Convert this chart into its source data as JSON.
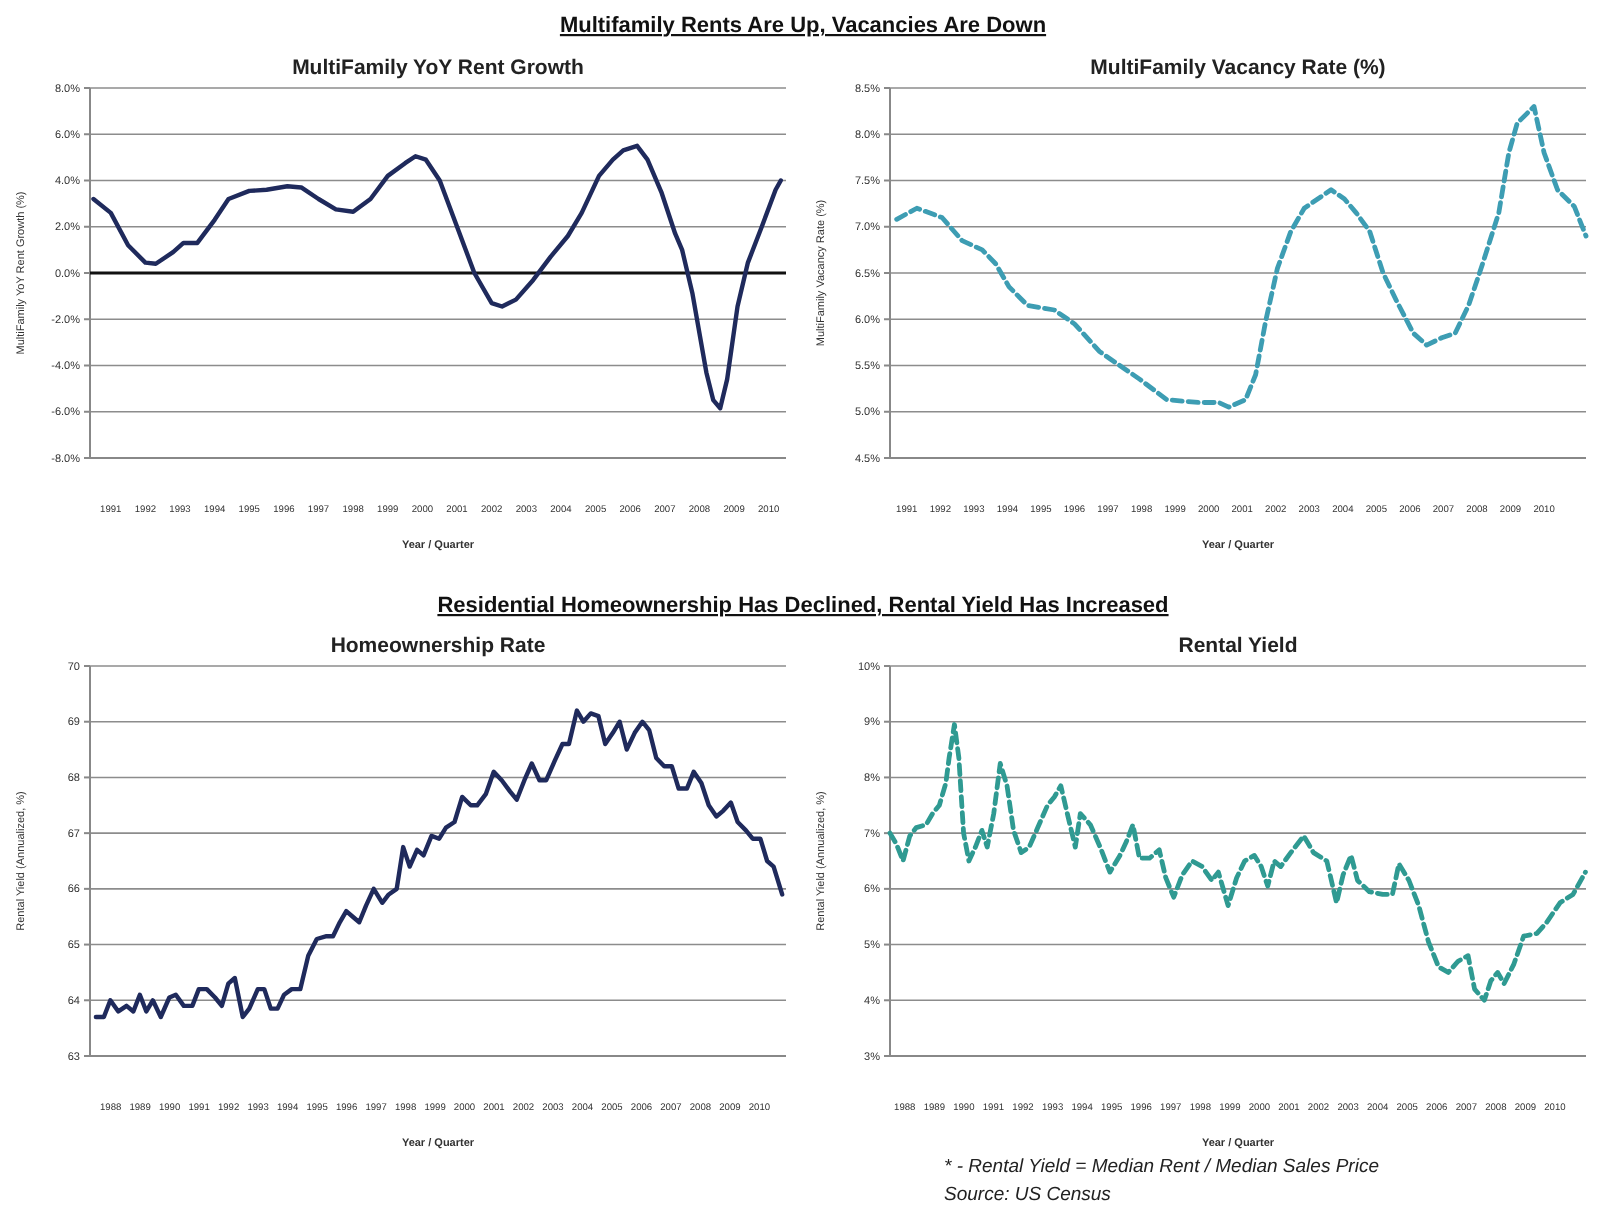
{
  "chart_data": [
    {
      "type": "line",
      "title": "MultiFamily YoY Rent Growth",
      "xlabel": "Year / Quarter",
      "ylabel": "MultiFamily YoY Rent Growth (%)",
      "annotations": [
        "Multifamily Rents Are Up, Vacancies Are Down"
      ],
      "grid": "y",
      "color": "#1f2a5c",
      "line_style": "solid",
      "x": [
        1991.0,
        1991.5,
        1992.0,
        1992.5,
        1992.8,
        1993.3,
        1993.6,
        1994.0,
        1994.5,
        1994.9,
        1995.5,
        1996.0,
        1996.6,
        1997.0,
        1997.5,
        1998.0,
        1998.5,
        1999.0,
        1999.5,
        2000.0,
        2000.3,
        2000.6,
        2001.0,
        2001.5,
        2002.0,
        2002.5,
        2002.8,
        2003.2,
        2003.7,
        2004.2,
        2004.7,
        2005.1,
        2005.6,
        2006.0,
        2006.3,
        2006.7,
        2007.0,
        2007.4,
        2007.8,
        2008.0,
        2008.3,
        2008.7,
        2008.9,
        2009.1,
        2009.3,
        2009.6,
        2009.9,
        2010.3,
        2010.7,
        2010.85
      ],
      "values": [
        3.2,
        2.6,
        1.2,
        0.45,
        0.4,
        0.9,
        1.3,
        1.3,
        2.3,
        3.2,
        3.55,
        3.6,
        3.75,
        3.7,
        3.2,
        2.75,
        2.65,
        3.2,
        4.2,
        4.75,
        5.05,
        4.9,
        4.0,
        2.0,
        0,
        -1.3,
        -1.45,
        -1.15,
        -0.3,
        0.7,
        1.6,
        2.6,
        4.2,
        4.9,
        5.3,
        5.5,
        4.9,
        3.5,
        1.7,
        1.0,
        -0.9,
        -4.3,
        -5.5,
        -5.85,
        -4.6,
        -1.45,
        0.45,
        2.0,
        3.6,
        4.0
      ],
      "xlim": [
        1990.9,
        2011.0
      ],
      "xticks": [
        {
          "value": 1991.5,
          "label": "1991"
        },
        {
          "value": 1992.5,
          "label": "1992"
        },
        {
          "value": 1993.5,
          "label": "1993"
        },
        {
          "value": 1994.5,
          "label": "1994"
        },
        {
          "value": 1995.5,
          "label": "1995"
        },
        {
          "value": 1996.5,
          "label": "1996"
        },
        {
          "value": 1997.5,
          "label": "1997"
        },
        {
          "value": 1998.5,
          "label": "1998"
        },
        {
          "value": 1999.5,
          "label": "1999"
        },
        {
          "value": 2000.5,
          "label": "2000"
        },
        {
          "value": 2001.5,
          "label": "2001"
        },
        {
          "value": 2002.5,
          "label": "2002"
        },
        {
          "value": 2003.5,
          "label": "2003"
        },
        {
          "value": 2004.5,
          "label": "2004"
        },
        {
          "value": 2005.5,
          "label": "2005"
        },
        {
          "value": 2006.5,
          "label": "2006"
        },
        {
          "value": 2007.5,
          "label": "2007"
        },
        {
          "value": 2008.5,
          "label": "2008"
        },
        {
          "value": 2009.5,
          "label": "2009"
        },
        {
          "value": 2010.5,
          "label": "2010"
        }
      ],
      "ylim": [
        -8,
        8
      ],
      "yticks": [
        {
          "value": -8,
          "label": "-8.0%"
        },
        {
          "value": -6,
          "label": "-6.0%"
        },
        {
          "value": -4,
          "label": "-4.0%"
        },
        {
          "value": -2,
          "label": "-2.0%"
        },
        {
          "value": 0,
          "label": "0.0%"
        },
        {
          "value": 2,
          "label": "2.0%"
        },
        {
          "value": 4,
          "label": "4.0%"
        },
        {
          "value": 6,
          "label": "6.0%"
        },
        {
          "value": 8,
          "label": "8.0%"
        }
      ],
      "ref_lines": [
        {
          "axis": "y",
          "value": 0,
          "color": "#111111"
        }
      ]
    },
    {
      "type": "line",
      "title": "MultiFamily Vacancy Rate (%)",
      "xlabel": "Year / Quarter",
      "ylabel": "MultiFamily Vacancy Rate (%)",
      "grid": "y",
      "color": "#3d9db3",
      "line_style": "dashed",
      "x": [
        1991.2,
        1991.8,
        1992.55,
        1993.15,
        1993.75,
        1994.15,
        1994.55,
        1995.1,
        1995.9,
        1996.5,
        1997.25,
        1997.85,
        1998.45,
        1999.25,
        2000.2,
        2000.8,
        2001.1,
        2001.6,
        2001.9,
        2002.2,
        2002.55,
        2002.95,
        2003.35,
        2003.75,
        2004.15,
        2004.55,
        2004.9,
        2005.3,
        2005.7,
        2006.1,
        2006.6,
        2007.0,
        2007.45,
        2007.85,
        2008.25,
        2008.65,
        2009.15,
        2009.45,
        2009.7,
        2010.2,
        2010.5,
        2010.9,
        2011.4,
        2011.75
      ],
      "values": [
        7.08,
        7.2,
        7.1,
        6.85,
        6.75,
        6.6,
        6.35,
        6.15,
        6.1,
        5.95,
        5.65,
        5.5,
        5.35,
        5.13,
        5.1,
        5.1,
        5.05,
        5.13,
        5.4,
        5.98,
        6.55,
        6.95,
        7.2,
        7.3,
        7.4,
        7.3,
        7.15,
        6.95,
        6.5,
        6.2,
        5.85,
        5.72,
        5.8,
        5.85,
        6.15,
        6.58,
        7.15,
        7.8,
        8.12,
        8.3,
        7.8,
        7.4,
        7.22,
        6.9
      ],
      "xlim": [
        1991.0,
        2011.75
      ],
      "xticks": [
        {
          "value": 1991.5,
          "label": "1991"
        },
        {
          "value": 1992.5,
          "label": "1992"
        },
        {
          "value": 1993.5,
          "label": "1993"
        },
        {
          "value": 1994.5,
          "label": "1994"
        },
        {
          "value": 1995.5,
          "label": "1995"
        },
        {
          "value": 1996.5,
          "label": "1996"
        },
        {
          "value": 1997.5,
          "label": "1997"
        },
        {
          "value": 1998.5,
          "label": "1998"
        },
        {
          "value": 1999.5,
          "label": "1999"
        },
        {
          "value": 2000.5,
          "label": "2000"
        },
        {
          "value": 2001.5,
          "label": "2001"
        },
        {
          "value": 2002.5,
          "label": "2002"
        },
        {
          "value": 2003.5,
          "label": "2003"
        },
        {
          "value": 2004.5,
          "label": "2004"
        },
        {
          "value": 2005.5,
          "label": "2005"
        },
        {
          "value": 2006.5,
          "label": "2006"
        },
        {
          "value": 2007.5,
          "label": "2007"
        },
        {
          "value": 2008.5,
          "label": "2008"
        },
        {
          "value": 2009.5,
          "label": "2009"
        },
        {
          "value": 2010.5,
          "label": "2010"
        }
      ],
      "ylim": [
        4.5,
        8.5
      ],
      "yticks": [
        {
          "value": 4.5,
          "label": "4.5%"
        },
        {
          "value": 5,
          "label": "5.0%"
        },
        {
          "value": 5.5,
          "label": "5.5%"
        },
        {
          "value": 6,
          "label": "6.0%"
        },
        {
          "value": 6.5,
          "label": "6.5%"
        },
        {
          "value": 7,
          "label": "7.0%"
        },
        {
          "value": 7.5,
          "label": "7.5%"
        },
        {
          "value": 8,
          "label": "8.0%"
        },
        {
          "value": 8.5,
          "label": "8.5%"
        }
      ]
    },
    {
      "type": "line",
      "title": "Homeownership Rate",
      "xlabel": "Year / Quarter",
      "ylabel": "Rental Yield (Annualized, %)",
      "annotations": [
        "Residential Homeownership Has Declined, Rental Yield Has Increased"
      ],
      "grid": "y",
      "color": "#1f2a5c",
      "line_style": "solid",
      "x": [
        1988.0,
        1988.27,
        1988.49,
        1988.76,
        1989.04,
        1989.27,
        1989.49,
        1989.71,
        1989.93,
        1990.2,
        1990.49,
        1990.71,
        1990.98,
        1991.27,
        1991.49,
        1991.76,
        1992.04,
        1992.27,
        1992.49,
        1992.71,
        1992.98,
        1993.2,
        1993.49,
        1993.71,
        1993.93,
        1994.16,
        1994.38,
        1994.64,
        1994.93,
        1995.2,
        1995.49,
        1995.82,
        1996.04,
        1996.27,
        1996.49,
        1996.71,
        1996.93,
        1997.16,
        1997.42,
        1997.71,
        1997.93,
        1998.2,
        1998.42,
        1998.64,
        1998.89,
        1999.11,
        1999.38,
        1999.64,
        1999.87,
        2000.16,
        2000.42,
        2000.71,
        2000.93,
        2001.22,
        2001.49,
        2001.76,
        2002.04,
        2002.27,
        2002.53,
        2002.78,
        2003.04,
        2003.27,
        2003.56,
        2003.82,
        2004.04,
        2004.31,
        2004.53,
        2004.78,
        2005.04,
        2005.27,
        2005.53,
        2005.76,
        2006.0,
        2006.27,
        2006.53,
        2006.76,
        2007.0,
        2007.27,
        2007.53,
        2007.76,
        2008.04,
        2008.27,
        2008.53,
        2008.78,
        2009.04,
        2009.27,
        2009.53,
        2009.76,
        2010.04,
        2010.27,
        2010.53,
        2010.76,
        2010.98,
        2011.27
      ],
      "values": [
        63.7,
        63.7,
        64.0,
        63.8,
        63.9,
        63.8,
        64.1,
        63.8,
        64.0,
        63.7,
        64.05,
        64.1,
        63.9,
        63.9,
        64.2,
        64.2,
        64.05,
        63.9,
        64.3,
        64.4,
        63.7,
        63.85,
        64.2,
        64.2,
        63.85,
        63.85,
        64.1,
        64.2,
        64.2,
        64.8,
        65.1,
        65.15,
        65.15,
        65.4,
        65.6,
        65.5,
        65.4,
        65.7,
        66.0,
        65.75,
        65.9,
        66.0,
        66.75,
        66.4,
        66.7,
        66.6,
        66.95,
        66.9,
        67.1,
        67.2,
        67.65,
        67.5,
        67.5,
        67.7,
        68.1,
        67.95,
        67.75,
        67.6,
        67.95,
        68.25,
        67.95,
        67.95,
        68.3,
        68.6,
        68.6,
        69.2,
        69.0,
        69.15,
        69.1,
        68.6,
        68.8,
        69.0,
        68.5,
        68.8,
        69.0,
        68.85,
        68.35,
        68.2,
        68.2,
        67.8,
        67.8,
        68.1,
        67.9,
        67.5,
        67.3,
        67.4,
        67.55,
        67.2,
        67.05,
        66.9,
        66.9,
        66.5,
        66.4,
        65.9
      ],
      "xlim": [
        1987.8,
        2011.4
      ],
      "xticks": [
        {
          "value": 1988.5,
          "label": "1988"
        },
        {
          "value": 1989.5,
          "label": "1989"
        },
        {
          "value": 1990.5,
          "label": "1990"
        },
        {
          "value": 1991.5,
          "label": "1991"
        },
        {
          "value": 1992.5,
          "label": "1992"
        },
        {
          "value": 1993.5,
          "label": "1993"
        },
        {
          "value": 1994.5,
          "label": "1994"
        },
        {
          "value": 1995.5,
          "label": "1995"
        },
        {
          "value": 1996.5,
          "label": "1996"
        },
        {
          "value": 1997.5,
          "label": "1997"
        },
        {
          "value": 1998.5,
          "label": "1998"
        },
        {
          "value": 1999.5,
          "label": "1999"
        },
        {
          "value": 2000.5,
          "label": "2000"
        },
        {
          "value": 2001.5,
          "label": "2001"
        },
        {
          "value": 2002.5,
          "label": "2002"
        },
        {
          "value": 2003.5,
          "label": "2003"
        },
        {
          "value": 2004.5,
          "label": "2004"
        },
        {
          "value": 2005.5,
          "label": "2005"
        },
        {
          "value": 2006.5,
          "label": "2006"
        },
        {
          "value": 2007.5,
          "label": "2007"
        },
        {
          "value": 2008.5,
          "label": "2008"
        },
        {
          "value": 2009.5,
          "label": "2009"
        },
        {
          "value": 2010.5,
          "label": "2010"
        }
      ],
      "ylim": [
        63,
        70
      ],
      "yticks": [
        63,
        64,
        65,
        66,
        67,
        68,
        69,
        70
      ]
    },
    {
      "type": "line",
      "title": "Rental Yield",
      "xlabel": "Year / Quarter",
      "ylabel": "Rental Yield (Annualized, %)",
      "annotations": [
        "* - Rental Yield = Median Rent / Median Sales Price",
        "Source:  US Census"
      ],
      "grid": "y",
      "color": "#2f9a92",
      "line_style": "dashed",
      "x": [
        1988.0,
        1988.22,
        1988.44,
        1988.67,
        1988.89,
        1989.22,
        1989.44,
        1989.67,
        1989.89,
        1990.0,
        1990.18,
        1990.33,
        1990.49,
        1990.67,
        1990.89,
        1991.11,
        1991.29,
        1991.51,
        1991.73,
        1991.96,
        1992.18,
        1992.44,
        1992.71,
        1993.0,
        1993.33,
        1993.56,
        1993.78,
        1994.0,
        1994.27,
        1994.44,
        1994.78,
        1995.11,
        1995.44,
        1995.78,
        1996.0,
        1996.22,
        1996.44,
        1996.78,
        1997.11,
        1997.33,
        1997.6,
        1997.89,
        1998.22,
        1998.56,
        1998.89,
        1999.11,
        1999.44,
        1999.73,
        2000.0,
        2000.33,
        2000.56,
        2000.78,
        2001.0,
        2001.22,
        2001.56,
        2002.0,
        2002.33,
        2002.78,
        2003.11,
        2003.33,
        2003.6,
        2003.82,
        2004.22,
        2004.67,
        2005.0,
        2005.22,
        2005.56,
        2005.89,
        2006.22,
        2006.56,
        2006.89,
        2007.22,
        2007.56,
        2007.78,
        2008.11,
        2008.33,
        2008.56,
        2008.78,
        2009.11,
        2009.44,
        2009.89,
        2010.22,
        2010.67,
        2011.11,
        2011.53
      ],
      "values": [
        7.0,
        6.8,
        6.5,
        6.95,
        7.1,
        7.15,
        7.35,
        7.5,
        7.9,
        8.35,
        8.95,
        8.35,
        7.0,
        6.5,
        6.75,
        7.05,
        6.75,
        7.35,
        8.25,
        7.85,
        7.05,
        6.65,
        6.75,
        7.1,
        7.5,
        7.65,
        7.85,
        7.35,
        6.75,
        7.35,
        7.15,
        6.75,
        6.3,
        6.6,
        6.85,
        7.15,
        6.55,
        6.55,
        6.7,
        6.2,
        5.85,
        6.25,
        6.5,
        6.4,
        6.15,
        6.3,
        5.7,
        6.2,
        6.5,
        6.6,
        6.4,
        6.05,
        6.5,
        6.4,
        6.65,
        6.95,
        6.65,
        6.5,
        5.75,
        6.25,
        6.6,
        6.15,
        5.95,
        5.9,
        5.9,
        6.45,
        6.15,
        5.7,
        5.05,
        4.6,
        4.5,
        4.7,
        4.8,
        4.2,
        4.0,
        4.35,
        4.5,
        4.3,
        4.65,
        5.15,
        5.2,
        5.4,
        5.75,
        5.9,
        6.3
      ],
      "xlim": [
        1988.0,
        2011.55
      ],
      "xticks": [
        {
          "value": 1988.5,
          "label": "1988"
        },
        {
          "value": 1989.5,
          "label": "1989"
        },
        {
          "value": 1990.5,
          "label": "1990"
        },
        {
          "value": 1991.5,
          "label": "1991"
        },
        {
          "value": 1992.5,
          "label": "1992"
        },
        {
          "value": 1993.5,
          "label": "1993"
        },
        {
          "value": 1994.5,
          "label": "1994"
        },
        {
          "value": 1995.5,
          "label": "1995"
        },
        {
          "value": 1996.5,
          "label": "1996"
        },
        {
          "value": 1997.5,
          "label": "1997"
        },
        {
          "value": 1998.5,
          "label": "1998"
        },
        {
          "value": 1999.5,
          "label": "1999"
        },
        {
          "value": 2000.5,
          "label": "2000"
        },
        {
          "value": 2001.5,
          "label": "2001"
        },
        {
          "value": 2002.5,
          "label": "2002"
        },
        {
          "value": 2003.5,
          "label": "2003"
        },
        {
          "value": 2004.5,
          "label": "2004"
        },
        {
          "value": 2005.5,
          "label": "2005"
        },
        {
          "value": 2006.5,
          "label": "2006"
        },
        {
          "value": 2007.5,
          "label": "2007"
        },
        {
          "value": 2008.5,
          "label": "2008"
        },
        {
          "value": 2009.5,
          "label": "2009"
        },
        {
          "value": 2010.5,
          "label": "2010"
        }
      ],
      "ylim": [
        3,
        10
      ],
      "yticks": [
        {
          "value": 3,
          "label": "3%"
        },
        {
          "value": 4,
          "label": "4%"
        },
        {
          "value": 5,
          "label": "5%"
        },
        {
          "value": 6,
          "label": "6%"
        },
        {
          "value": 7,
          "label": "7%"
        },
        {
          "value": 8,
          "label": "8%"
        },
        {
          "value": 9,
          "label": "9%"
        },
        {
          "value": 10,
          "label": "10%"
        }
      ]
    }
  ]
}
